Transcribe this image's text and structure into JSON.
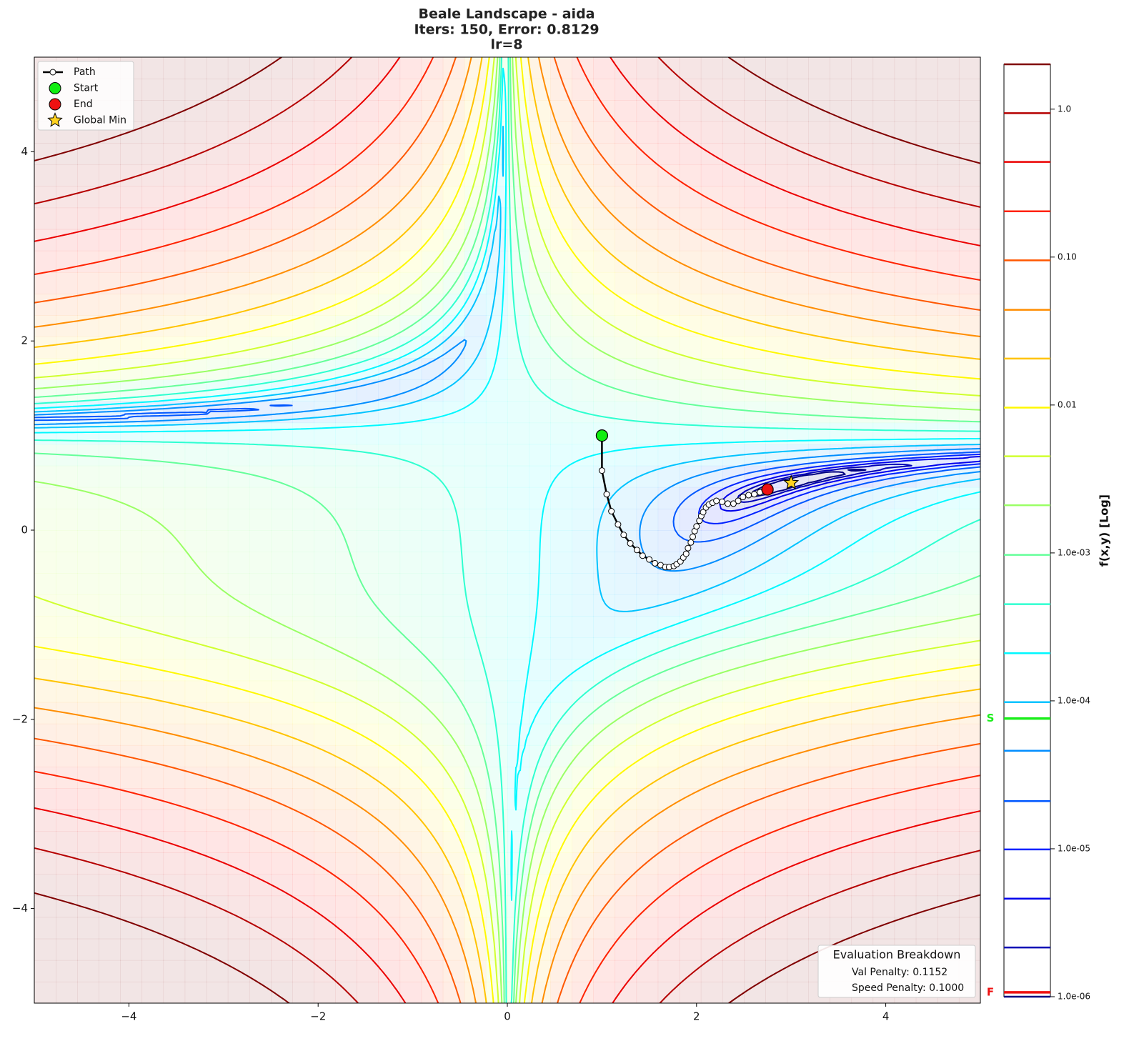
{
  "chart_data": {
    "type": "contour",
    "title": "Beale Landscape - aida",
    "subtitle": "Iters: 150, Error: 0.8129",
    "subtitle2": "lr=8",
    "xlim": [
      -5,
      5
    ],
    "ylim": [
      -5,
      5
    ],
    "xticks": [
      {
        "value": -4,
        "label": "−4"
      },
      {
        "value": -2,
        "label": "−2"
      },
      0,
      2,
      4
    ],
    "yticks": [
      {
        "value": -4,
        "label": "−4"
      },
      {
        "value": -2,
        "label": "−2"
      },
      0,
      2,
      4
    ],
    "colormap": "jet",
    "levels": [
      1e-06,
      2.15e-06,
      4.6e-06,
      9.9e-06,
      2.1e-05,
      4.6e-05,
      9.8e-05,
      0.00021,
      0.00045,
      0.00097,
      0.0021,
      0.0045,
      0.0096,
      0.0206,
      0.044,
      0.095,
      0.204,
      0.44,
      0.94,
      2.01
    ],
    "colorbar": {
      "label": "f(x,y) [Log]",
      "scale": "log",
      "lim": [
        1e-06,
        2.01
      ],
      "ticks": [
        {
          "value": 1e-06,
          "label": "1.0e-06"
        },
        {
          "value": 1e-05,
          "label": "1.0e-05"
        },
        {
          "value": 0.0001,
          "label": "1.0e-04"
        },
        {
          "value": 0.001,
          "label": "1.0e-03"
        },
        {
          "value": 0.01,
          "label": "0.01"
        },
        {
          "value": 0.1,
          "label": "0.10"
        },
        {
          "value": 1,
          "label": "1.0"
        }
      ],
      "markers": [
        {
          "label": "S",
          "value": 7.6e-05,
          "color": "#1aee1a"
        },
        {
          "label": "F",
          "value": 1.07e-06,
          "color": "#ee1111"
        }
      ]
    },
    "series": [
      {
        "name": "Path",
        "color": "#000000",
        "x": [
          1.0,
          1.0,
          1.05,
          1.1,
          1.17,
          1.23,
          1.3,
          1.37,
          1.43,
          1.5,
          1.56,
          1.62,
          1.67,
          1.71,
          1.76,
          1.79,
          1.83,
          1.86,
          1.89,
          1.91,
          1.94,
          1.96,
          1.98,
          2.0,
          2.03,
          2.05,
          2.07,
          2.1,
          2.13,
          2.17,
          2.21,
          2.27,
          2.33,
          2.39,
          2.44,
          2.49,
          2.55,
          2.61,
          2.67,
          2.75
        ],
        "y": [
          1.0,
          0.63,
          0.38,
          0.2,
          0.06,
          -0.05,
          -0.14,
          -0.21,
          -0.27,
          -0.31,
          -0.35,
          -0.37,
          -0.39,
          -0.39,
          -0.38,
          -0.36,
          -0.33,
          -0.29,
          -0.25,
          -0.19,
          -0.13,
          -0.07,
          -0.01,
          0.04,
          0.1,
          0.15,
          0.19,
          0.24,
          0.27,
          0.29,
          0.31,
          0.3,
          0.28,
          0.28,
          0.31,
          0.35,
          0.37,
          0.38,
          0.4,
          0.43
        ]
      },
      {
        "name": "Start",
        "color": "#11ee11",
        "x": [
          1.0
        ],
        "y": [
          1.0
        ]
      },
      {
        "name": "End",
        "color": "#ee1111",
        "x": [
          2.75
        ],
        "y": [
          0.43
        ]
      },
      {
        "name": "Global Min",
        "color": "#ffd21f",
        "marker": "star",
        "x": [
          3.0
        ],
        "y": [
          0.5
        ]
      }
    ],
    "legend": "upper left",
    "annotation": {
      "title": "Evaluation Breakdown",
      "lines": [
        "Val Penalty: 0.1152",
        "Speed Penalty: 0.1000"
      ]
    }
  }
}
